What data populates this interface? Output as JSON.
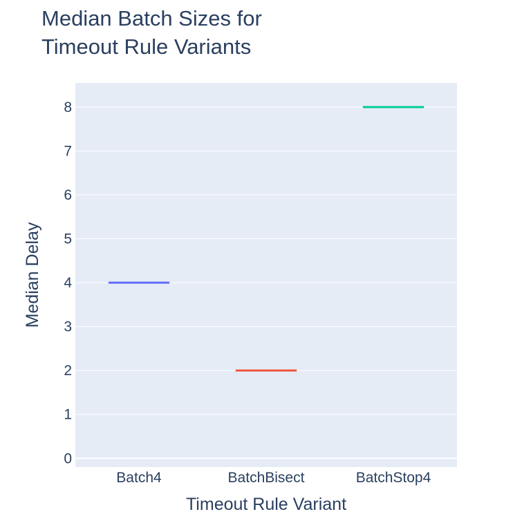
{
  "chart_data": {
    "type": "box",
    "title": "Median Batch Sizes for\nTimeout Rule Variants",
    "xlabel": "Timeout Rule Variant",
    "ylabel": "Median Delay",
    "categories": [
      "Batch4",
      "BatchBisect",
      "BatchStop4"
    ],
    "values": [
      4,
      2,
      8
    ],
    "colors": [
      "#636efa",
      "#ef553b",
      "#00cc96"
    ],
    "ylim": [
      -0.2,
      8.55
    ],
    "yticks": [
      0,
      1,
      2,
      3,
      4,
      5,
      6,
      7,
      8
    ],
    "grid": true,
    "plot_bg": "#e5ecf6"
  }
}
